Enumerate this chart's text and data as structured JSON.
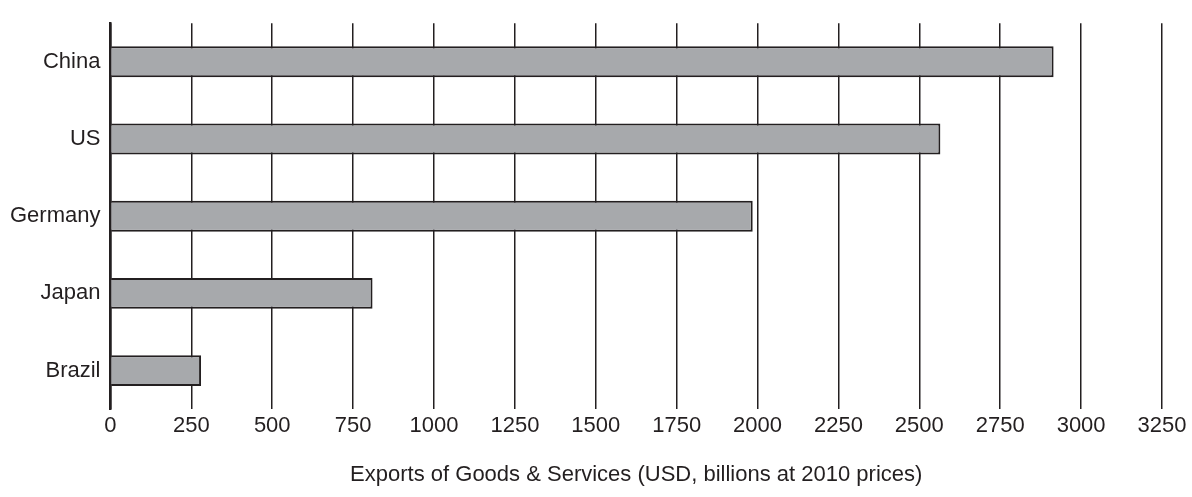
{
  "chart_data": {
    "type": "bar",
    "orientation": "horizontal",
    "xlabel": "Exports of Goods & Services (USD, billions at 2010 prices)",
    "categories": [
      "China",
      "US",
      "Germany",
      "Japan",
      "Brazil"
    ],
    "values": [
      2915,
      2565,
      1985,
      810,
      280
    ],
    "color": "#a7a9ac",
    "xlim": [
      0,
      3250
    ],
    "xticks": [
      0,
      250,
      500,
      750,
      1000,
      1250,
      1500,
      1750,
      2000,
      2250,
      2500,
      2750,
      3000,
      3250
    ],
    "grid": "x",
    "legend": false
  }
}
